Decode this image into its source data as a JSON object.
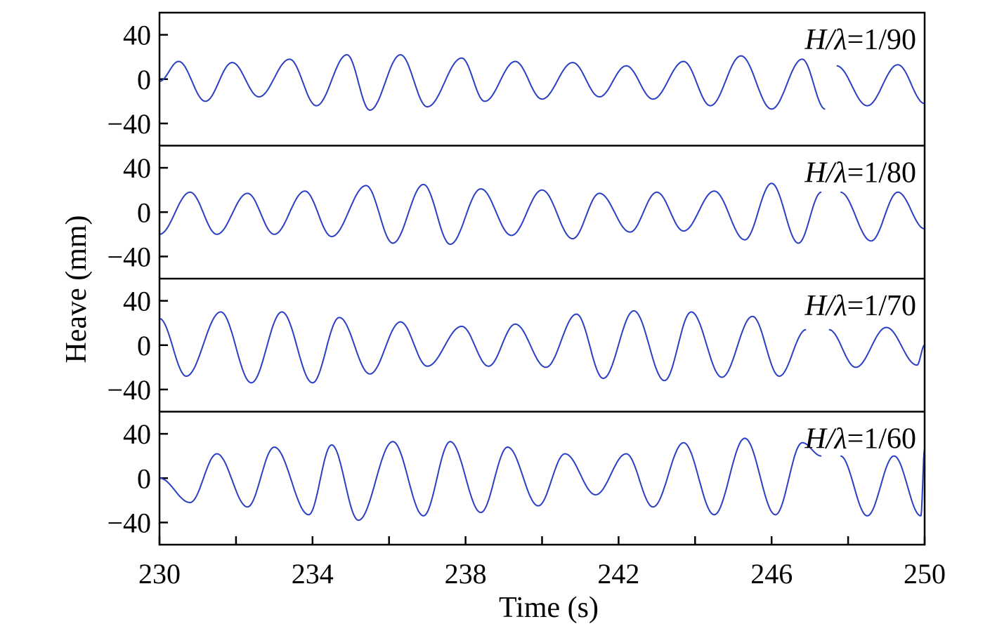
{
  "chart_data": {
    "type": "line",
    "xlabel": "Time (s)",
    "ylabel": "Heave (mm)",
    "xlim": [
      230,
      250
    ],
    "x_ticks": [
      230,
      234,
      238,
      242,
      246,
      250
    ],
    "x_tick_labels": [
      "230",
      "234",
      "238",
      "242",
      "246",
      "250"
    ],
    "x_minor_ticks": [
      232,
      236,
      240,
      244,
      248
    ],
    "ylim": [
      -60,
      60
    ],
    "y_ticks": [
      40,
      0,
      -40
    ],
    "y_tick_labels": [
      "40",
      "0",
      "−40"
    ],
    "line_color": "#2a3fc4",
    "grid": false,
    "panels": [
      {
        "label_italic": "H/λ",
        "label_value": "=1/90",
        "series": [
          {
            "x": [
              230.0,
              230.5,
              231.2,
              231.9,
              232.6,
              233.4,
              234.1,
              234.9,
              235.5,
              236.3,
              237.0,
              237.9,
              238.5,
              239.3,
              240.0,
              240.8,
              241.5,
              242.2,
              242.9,
              243.7,
              244.4,
              245.2,
              246.0,
              246.8,
              247.4
            ],
            "y": [
              -2,
              16,
              -20,
              15,
              -16,
              18,
              -24,
              22,
              -28,
              22,
              -25,
              19,
              -20,
              16,
              -18,
              15,
              -16,
              12,
              -18,
              16,
              -24,
              21,
              -27,
              18,
              -27
            ],
            "dashed_until": 247.4
          },
          {
            "x": [
              247.7,
              248.5,
              249.3,
              250.0
            ],
            "y": [
              12,
              -24,
              13,
              -22
            ]
          }
        ]
      },
      {
        "label_italic": "H/λ",
        "label_value": "=1/80",
        "series": [
          {
            "x": [
              230.0,
              230.8,
              231.5,
              232.3,
              233.0,
              233.8,
              234.5,
              235.4,
              236.1,
              236.9,
              237.6,
              238.4,
              239.2,
              240.0,
              240.8,
              241.5,
              242.3,
              243.0,
              243.7,
              244.5,
              245.3,
              246.0,
              246.7,
              247.3
            ],
            "y": [
              -20,
              18,
              -20,
              17,
              -20,
              19,
              -22,
              24,
              -28,
              25,
              -29,
              21,
              -21,
              20,
              -24,
              17,
              -18,
              18,
              -17,
              19,
              -25,
              26,
              -28,
              18
            ],
            "dashed_until": 247.3
          },
          {
            "x": [
              247.8,
              248.6,
              249.3,
              250.0
            ],
            "y": [
              18,
              -26,
              18,
              -15
            ]
          }
        ]
      },
      {
        "label_italic": "H/λ",
        "label_value": "=1/70",
        "series": [
          {
            "x": [
              230.0,
              230.7,
              231.6,
              232.4,
              233.2,
              234.0,
              234.7,
              235.5,
              236.3,
              237.0,
              237.9,
              238.6,
              239.3,
              240.1,
              240.9,
              241.6,
              242.4,
              243.2,
              243.9,
              244.7,
              245.5,
              246.2,
              246.9
            ],
            "y": [
              24,
              -28,
              30,
              -34,
              30,
              -34,
              25,
              -26,
              21,
              -19,
              17,
              -19,
              19,
              -20,
              28,
              -30,
              31,
              -32,
              30,
              -29,
              26,
              -28,
              14
            ],
            "dashed_until": 246.9
          },
          {
            "x": [
              247.5,
              248.2,
              249.0,
              249.8,
              250.0
            ],
            "y": [
              14,
              -20,
              16,
              -18,
              0
            ]
          }
        ]
      },
      {
        "label_italic": "H/λ",
        "label_value": "=1/60",
        "series": [
          {
            "x": [
              230.0,
              230.8,
              231.5,
              232.3,
              233.0,
              233.9,
              234.5,
              235.2,
              236.1,
              236.9,
              237.6,
              238.4,
              239.1,
              239.9,
              240.6,
              241.4,
              242.2,
              242.9,
              243.7,
              244.5,
              245.3,
              246.1,
              246.8,
              247.3
            ],
            "y": [
              0,
              -22,
              22,
              -26,
              28,
              -33,
              30,
              -38,
              33,
              -34,
              33,
              -31,
              28,
              -25,
              22,
              -15,
              22,
              -26,
              32,
              -33,
              36,
              -33,
              32,
              20
            ],
            "dashed_until": 247.3
          },
          {
            "x": [
              247.8,
              248.5,
              249.2,
              249.9,
              250.0
            ],
            "y": [
              20,
              -34,
              20,
              -34,
              26
            ]
          }
        ]
      }
    ]
  }
}
